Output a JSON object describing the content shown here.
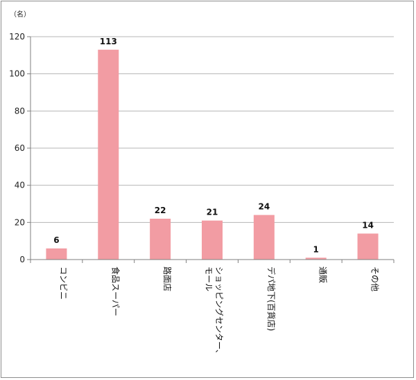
{
  "chart_data": {
    "type": "bar",
    "unit_label": "（名）",
    "categories": [
      "コンビニ",
      "食品スーパー",
      "路面店",
      "ショッピングセンター、モール",
      "デパ地下(百貨店)",
      "通販",
      "その他"
    ],
    "values": [
      6,
      113,
      22,
      21,
      24,
      1,
      14
    ],
    "data_labels": [
      "6",
      "113",
      "22",
      "21",
      "24",
      "1",
      "14"
    ],
    "ylim": [
      0,
      120
    ],
    "yticks": [
      0,
      20,
      40,
      60,
      80,
      100,
      120
    ],
    "grid": true,
    "legend": "none",
    "bar_color": "#f29ca3",
    "grid_color": "#b5b5b5",
    "axis_color": "#7f7f7f"
  }
}
